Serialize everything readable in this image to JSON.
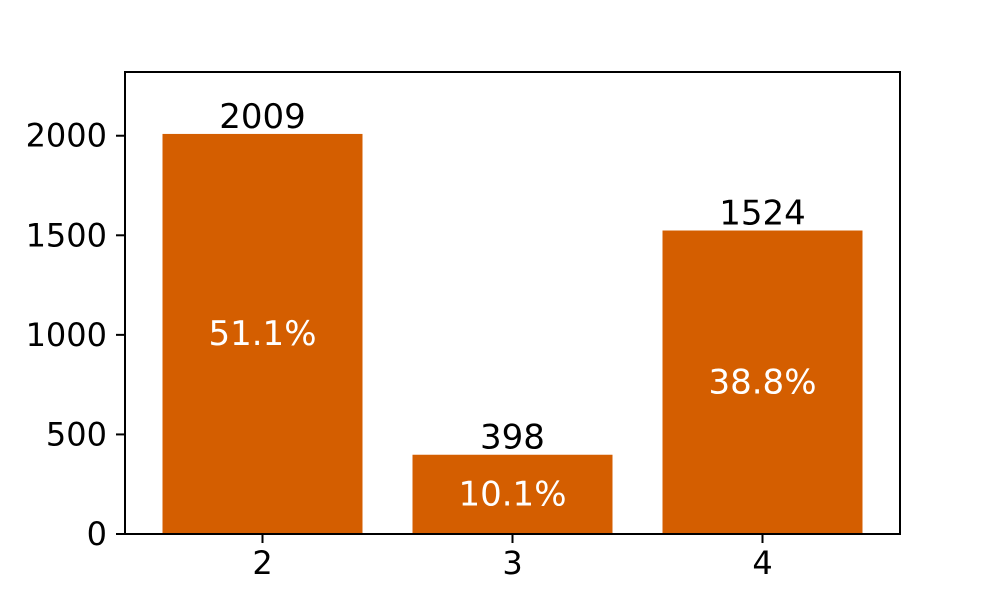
{
  "chart_data": {
    "type": "bar",
    "categories": [
      "2",
      "3",
      "4"
    ],
    "values": [
      2009,
      398,
      1524
    ],
    "percent_labels": [
      "51.1%",
      "10.1%",
      "38.8%"
    ],
    "value_labels": [
      "2009",
      "398",
      "1524"
    ],
    "title": "",
    "xlabel": "",
    "ylabel": "",
    "ylim": [
      0,
      2320
    ],
    "yticks": [
      0,
      500,
      1000,
      1500,
      2000
    ],
    "ytick_labels": [
      "0",
      "500",
      "1000",
      "1500",
      "2000"
    ],
    "grid": false,
    "bar_color": "#d45e00",
    "legend": "none"
  }
}
